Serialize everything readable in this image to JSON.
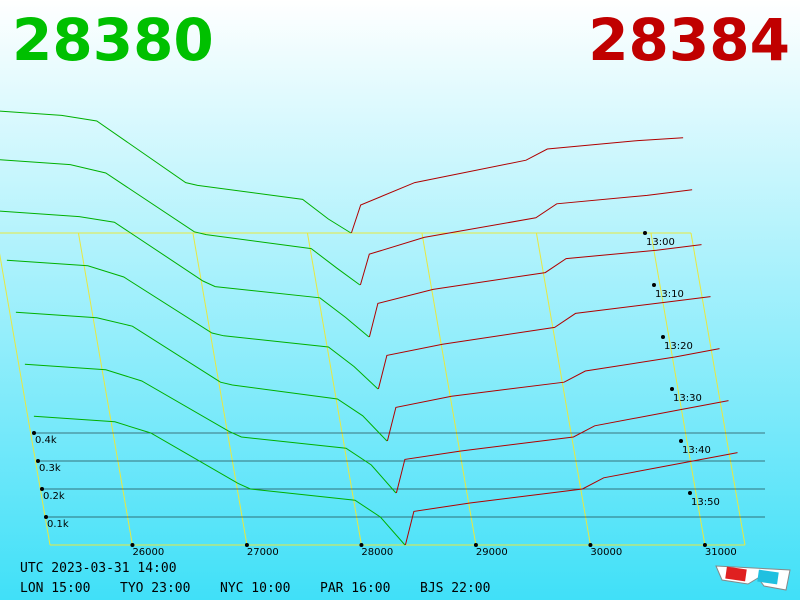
{
  "bid_price": "28380",
  "ask_price": "28384",
  "chart_data": {
    "type": "depth3d",
    "xlim": [
      25280,
      31350
    ],
    "xticks": [
      26000,
      27000,
      28000,
      29000,
      30000,
      31000
    ],
    "depth_ticks": [
      {
        "value": 0.1,
        "label": "0.1k"
      },
      {
        "value": 0.2,
        "label": "0.2k"
      },
      {
        "value": 0.3,
        "label": "0.3k"
      },
      {
        "value": 0.4,
        "label": "0.4k"
      }
    ],
    "bid_color": "#00b000",
    "ask_color": "#b00000",
    "bid_prices": [
      25300,
      26000,
      26300,
      27000,
      27100,
      28000,
      28200,
      28380
    ],
    "ask_prices": [
      28384,
      28500,
      29000,
      30000,
      30200,
      31000,
      31400
    ],
    "snapshots": [
      {
        "time": "13:00",
        "bid": [
          0.44,
          0.42,
          0.4,
          0.18,
          0.17,
          0.12,
          0.05,
          0
        ],
        "ask": [
          0,
          0.1,
          0.18,
          0.26,
          0.3,
          0.33,
          0.34
        ]
      },
      {
        "time": "13:10",
        "bid": [
          0.45,
          0.43,
          0.4,
          0.19,
          0.18,
          0.13,
          0.06,
          0
        ],
        "ask": [
          0,
          0.11,
          0.17,
          0.24,
          0.29,
          0.32,
          0.34
        ]
      },
      {
        "time": "13:20",
        "bid": [
          0.45,
          0.43,
          0.41,
          0.2,
          0.18,
          0.14,
          0.07,
          0
        ],
        "ask": [
          0,
          0.12,
          0.17,
          0.23,
          0.28,
          0.31,
          0.33
        ]
      },
      {
        "time": "13:30",
        "bid": [
          0.46,
          0.44,
          0.4,
          0.2,
          0.19,
          0.15,
          0.08,
          0
        ],
        "ask": [
          0,
          0.12,
          0.16,
          0.22,
          0.27,
          0.31,
          0.33
        ]
      },
      {
        "time": "13:40",
        "bid": [
          0.46,
          0.44,
          0.41,
          0.21,
          0.2,
          0.15,
          0.09,
          0
        ],
        "ask": [
          0,
          0.12,
          0.16,
          0.21,
          0.25,
          0.3,
          0.33
        ]
      },
      {
        "time": "13:50",
        "bid": [
          0.46,
          0.44,
          0.4,
          0.22,
          0.2,
          0.16,
          0.1,
          0
        ],
        "ask": [
          0,
          0.12,
          0.15,
          0.2,
          0.24,
          0.3,
          0.33
        ]
      },
      {
        "time": null,
        "bid": [
          0.46,
          0.44,
          0.4,
          0.22,
          0.2,
          0.16,
          0.1,
          0
        ],
        "ask": [
          0,
          0.12,
          0.15,
          0.2,
          0.24,
          0.3,
          0.33
        ]
      }
    ]
  },
  "footer": {
    "utc": "UTC 2023-03-31 14:00",
    "zones": [
      "LON 15:00",
      "TYO 23:00",
      "NYC 10:00",
      "PAR 16:00",
      "BJS 22:00"
    ]
  }
}
